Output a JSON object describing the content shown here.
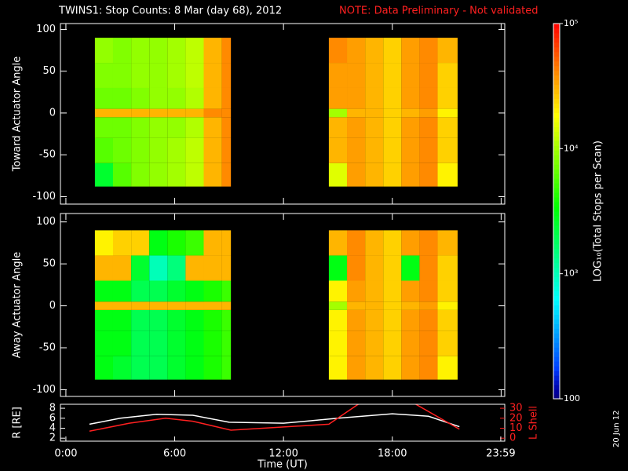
{
  "title": "TWINS1: Stop Counts:  8 Mar (day  68), 2012",
  "note": "NOTE: Data Preliminary - Not validated",
  "stamp": "20 Jun 12",
  "chart_data": [
    {
      "type": "heatmap",
      "ylabel": "Toward Actuator Angle",
      "xlim": [
        -0.3,
        24.2
      ],
      "xticks": [
        0,
        6,
        12,
        18,
        24
      ],
      "ylim": [
        -109,
        107
      ],
      "yticks": [
        -100,
        -50,
        0,
        50,
        100
      ],
      "x_edges": [
        1.6,
        2.6,
        3.6,
        4.6,
        5.6,
        6.6,
        7.6,
        8.6,
        9.1,
        14.5,
        15.5,
        16.5,
        17.5,
        18.5,
        19.5,
        20.5,
        21.6
      ],
      "y_edges": [
        -88,
        -60,
        -30,
        -5,
        5,
        30,
        60,
        90
      ],
      "values": [
        [
          2500,
          6000,
          7000,
          30000,
          7000,
          8000,
          9000
        ],
        [
          6000,
          7000,
          7000,
          30000,
          7000,
          8000,
          8000
        ],
        [
          8000,
          8000,
          8000,
          30000,
          8000,
          9000,
          9000
        ],
        [
          9000,
          9000,
          9000,
          30000,
          9000,
          9000,
          9000
        ],
        [
          10000,
          10000,
          9000,
          30000,
          9000,
          10000,
          10000
        ],
        [
          12000,
          12000,
          11000,
          30000,
          11000,
          12000,
          12000
        ],
        [
          30000,
          30000,
          30000,
          40000,
          30000,
          30000,
          30000
        ],
        [
          40000,
          40000,
          40000,
          40000,
          40000,
          40000,
          40000
        ],
        [
          null,
          null,
          null,
          null,
          null,
          null,
          null
        ],
        [
          15000,
          30000,
          30000,
          10000,
          35000,
          35000,
          40000
        ],
        [
          35000,
          35000,
          35000,
          30000,
          35000,
          35000,
          35000
        ],
        [
          30000,
          30000,
          30000,
          30000,
          30000,
          30000,
          30000
        ],
        [
          25000,
          25000,
          25000,
          25000,
          25000,
          25000,
          25000
        ],
        [
          35000,
          35000,
          35000,
          30000,
          35000,
          35000,
          35000
        ],
        [
          40000,
          40000,
          40000,
          35000,
          40000,
          40000,
          40000
        ],
        [
          20000,
          25000,
          25000,
          20000,
          25000,
          25000,
          30000
        ]
      ]
    },
    {
      "type": "heatmap",
      "ylabel": "Away Actuator Angle",
      "xlim": [
        -0.3,
        24.2
      ],
      "xticks": [
        0,
        6,
        12,
        18,
        24
      ],
      "ylim": [
        -108,
        110
      ],
      "yticks": [
        -100,
        -50,
        0,
        50,
        100
      ],
      "x_edges": [
        1.6,
        2.6,
        3.6,
        4.6,
        5.6,
        6.6,
        7.6,
        8.6,
        9.1,
        14.5,
        15.5,
        16.5,
        17.5,
        18.5,
        19.5,
        20.5,
        21.6
      ],
      "y_edges": [
        -88,
        -60,
        -30,
        -5,
        5,
        30,
        60,
        90
      ],
      "values": [
        [
          3000,
          3000,
          3000,
          30000,
          3000,
          30000,
          20000
        ],
        [
          2500,
          3000,
          3000,
          30000,
          3000,
          30000,
          25000
        ],
        [
          2000,
          2000,
          2000,
          30000,
          2000,
          2500,
          25000
        ],
        [
          2000,
          2000,
          2000,
          30000,
          2000,
          1000,
          3000
        ],
        [
          2500,
          2500,
          2500,
          30000,
          2500,
          1500,
          4000
        ],
        [
          3000,
          3000,
          3000,
          30000,
          3000,
          30000,
          5000
        ],
        [
          4000,
          4000,
          4000,
          30000,
          4000,
          30000,
          30000
        ],
        [
          5000,
          5000,
          5000,
          30000,
          5000,
          30000,
          30000
        ],
        [
          null,
          null,
          null,
          null,
          null,
          null,
          null
        ],
        [
          20000,
          20000,
          20000,
          10000,
          20000,
          3000,
          30000
        ],
        [
          35000,
          35000,
          35000,
          30000,
          35000,
          40000,
          40000
        ],
        [
          30000,
          30000,
          30000,
          30000,
          30000,
          30000,
          30000
        ],
        [
          25000,
          25000,
          25000,
          25000,
          25000,
          25000,
          25000
        ],
        [
          35000,
          35000,
          35000,
          30000,
          35000,
          3000,
          35000
        ],
        [
          40000,
          40000,
          40000,
          35000,
          40000,
          40000,
          40000
        ],
        [
          20000,
          25000,
          25000,
          20000,
          25000,
          25000,
          30000
        ]
      ]
    },
    {
      "type": "line",
      "ylabel": "R [RE]",
      "y2label": "L Shell",
      "xlabel": "Time (UT)",
      "xlim": [
        -0.3,
        24.2
      ],
      "xticks": [
        {
          "value": 0,
          "label": "0:00"
        },
        {
          "value": 6,
          "label": "6:00"
        },
        {
          "value": 12,
          "label": "12:00"
        },
        {
          "value": 18,
          "label": "18:00"
        },
        {
          "value": 23.98,
          "label": "23:59"
        }
      ],
      "ylim": [
        1.4,
        8.8
      ],
      "yticks": [
        2,
        4,
        6,
        8
      ],
      "y2lim": [
        -3,
        34
      ],
      "y2ticks": [
        0,
        10,
        20,
        30
      ],
      "series": [
        {
          "color": "#ffffff",
          "x": [
            1.3,
            3,
            5,
            7,
            9,
            12,
            15,
            18,
            20,
            21.7
          ],
          "values": [
            4.8,
            6,
            6.8,
            6.6,
            5.2,
            5,
            6,
            6.9,
            6.4,
            4.3
          ]
        },
        {
          "color": "#ff2020",
          "axis": "y2",
          "x": [
            1.3,
            3.5,
            5.5,
            7,
            9.1,
            14.5,
            16.2,
            19.2,
            21.7
          ],
          "values": [
            7,
            15,
            20,
            17,
            8,
            14,
            35,
            35,
            9
          ]
        }
      ]
    },
    {
      "type": "colorbar",
      "label": "LOG₁₀(Total Stops per Scan)",
      "lim": [
        100,
        100000
      ],
      "log": true,
      "ticks": [
        {
          "value": 100000,
          "label": "10⁵"
        },
        {
          "value": 10000,
          "label": "10⁴"
        },
        {
          "value": 1000,
          "label": "10³"
        },
        100
      ]
    }
  ]
}
